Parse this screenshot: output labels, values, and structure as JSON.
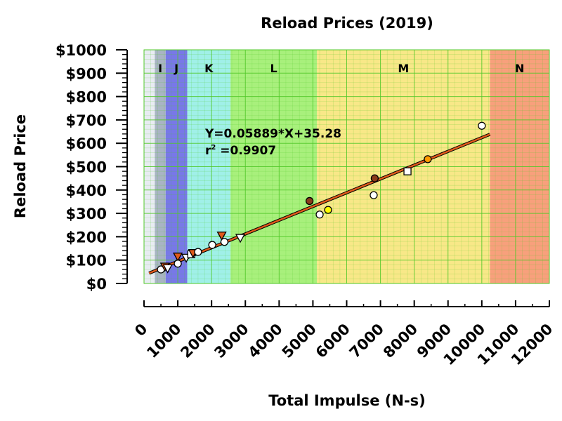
{
  "chart_data": {
    "type": "scatter",
    "title": "Reload Prices (2019)",
    "xlabel": "Total Impulse (N-s)",
    "ylabel": "Reload Price",
    "xlim": [
      0,
      12000
    ],
    "ylim": [
      0,
      1000
    ],
    "xticks": [
      0,
      1000,
      2000,
      3000,
      4000,
      5000,
      6000,
      7000,
      8000,
      9000,
      10000,
      11000,
      12000
    ],
    "xtick_labels": [
      "0",
      "1000",
      "2000",
      "3000",
      "4000",
      "5000",
      "6000",
      "7000",
      "8000",
      "9000",
      "10000",
      "11000",
      "12000"
    ],
    "yticks": [
      0,
      100,
      200,
      300,
      400,
      500,
      600,
      700,
      800,
      900,
      1000
    ],
    "ytick_labels": [
      "$0",
      "$100",
      "$200",
      "$300",
      "$400",
      "$500",
      "$600",
      "$700",
      "$800",
      "$900",
      "$1000"
    ],
    "grid": true,
    "bands": [
      {
        "label": "I",
        "from": 320,
        "to": 640,
        "color": "#a9b4c4"
      },
      {
        "label": "J",
        "from": 640,
        "to": 1280,
        "color": "#7878e8"
      },
      {
        "label": "K",
        "from": 1280,
        "to": 2560,
        "color": "#a0f0e8"
      },
      {
        "label": "L",
        "from": 2560,
        "to": 5120,
        "color": "#a8f07c"
      },
      {
        "label": "M",
        "from": 5120,
        "to": 10240,
        "color": "#f8e888"
      },
      {
        "label": "N",
        "from": 10240,
        "to": 12000,
        "color": "#f8a07c"
      }
    ],
    "points": [
      {
        "x": 500,
        "y": 60,
        "shape": "circle",
        "color": "#ffffff"
      },
      {
        "x": 620,
        "y": 72,
        "shape": "triangle-down",
        "color": "#e05a1a"
      },
      {
        "x": 700,
        "y": 65,
        "shape": "triangle-down",
        "color": "#ffffff"
      },
      {
        "x": 1000,
        "y": 115,
        "shape": "triangle-down",
        "color": "#e05a1a"
      },
      {
        "x": 1000,
        "y": 85,
        "shape": "circle",
        "color": "#ffffff"
      },
      {
        "x": 1250,
        "y": 110,
        "shape": "triangle-down",
        "color": "#ffffff"
      },
      {
        "x": 1400,
        "y": 125,
        "shape": "square",
        "color": "#ffffff"
      },
      {
        "x": 1450,
        "y": 130,
        "shape": "triangle-down",
        "color": "#e05a1a"
      },
      {
        "x": 1600,
        "y": 135,
        "shape": "circle",
        "color": "#ffffff"
      },
      {
        "x": 2020,
        "y": 165,
        "shape": "circle",
        "color": "#ffffff"
      },
      {
        "x": 2300,
        "y": 205,
        "shape": "triangle-down",
        "color": "#e05a1a"
      },
      {
        "x": 2380,
        "y": 178,
        "shape": "circle",
        "color": "#ffffff"
      },
      {
        "x": 2850,
        "y": 195,
        "shape": "triangle-down",
        "color": "#ffffff"
      },
      {
        "x": 4900,
        "y": 353,
        "shape": "circle",
        "color": "#8b3a1a"
      },
      {
        "x": 5200,
        "y": 295,
        "shape": "circle",
        "color": "#ffffff"
      },
      {
        "x": 5450,
        "y": 315,
        "shape": "circle",
        "color": "#ffff00"
      },
      {
        "x": 6800,
        "y": 378,
        "shape": "circle",
        "color": "#ffffff"
      },
      {
        "x": 6830,
        "y": 450,
        "shape": "circle",
        "color": "#8b3a1a"
      },
      {
        "x": 7800,
        "y": 480,
        "shape": "square",
        "color": "#ffffff"
      },
      {
        "x": 8400,
        "y": 532,
        "shape": "circle",
        "color": "#ff9900"
      },
      {
        "x": 10000,
        "y": 675,
        "shape": "circle",
        "color": "#ffffff"
      }
    ],
    "fit": {
      "slope": 0.05889,
      "intercept": 35.28,
      "x_from": 150,
      "x_to": 10240,
      "color": "#e05a1a",
      "equation": "Y=0.05889*X+35.28",
      "r2_prefix": "r",
      "r2_sup": "2",
      "r2_value": " =0.9907"
    }
  }
}
